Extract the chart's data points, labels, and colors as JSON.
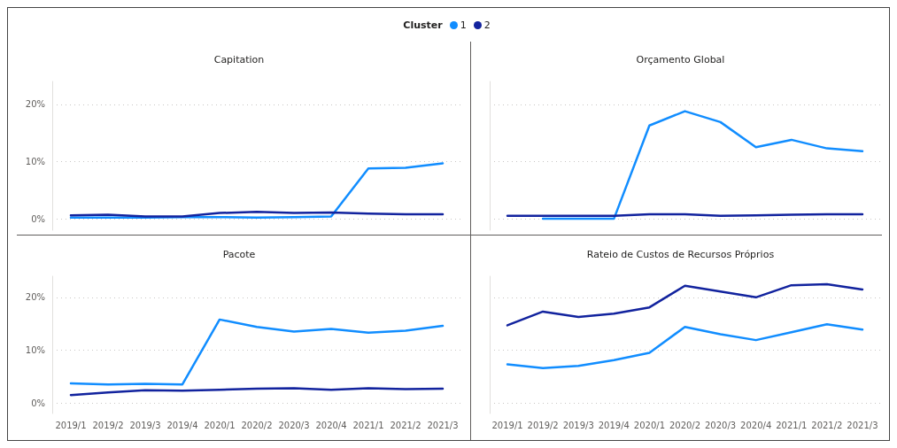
{
  "chart_data": [
    {
      "type": "line",
      "title": "Capitation",
      "legend_title": "Cluster",
      "legend": "top",
      "categories": [
        "2019/1",
        "2019/2",
        "2019/3",
        "2019/4",
        "2020/1",
        "2020/2",
        "2020/3",
        "2020/4",
        "2021/1",
        "2021/2",
        "2021/3"
      ],
      "series": [
        {
          "name": "1",
          "color": "#118dff",
          "values": [
            0.2,
            0.2,
            0.2,
            0.3,
            0.3,
            0.2,
            0.3,
            0.4,
            8.8,
            8.9,
            9.7
          ]
        },
        {
          "name": "2",
          "color": "#12239e",
          "values": [
            0.6,
            0.7,
            0.4,
            0.4,
            1.0,
            1.2,
            1.0,
            1.1,
            0.9,
            0.8,
            0.8
          ]
        }
      ],
      "ylim": [
        -2,
        24
      ],
      "yticks": [
        {
          "value": 0,
          "label": "0%"
        },
        {
          "value": 10,
          "label": "10%"
        },
        {
          "value": 20,
          "label": "20%"
        }
      ],
      "grid": "y",
      "tick_labels": "y",
      "marker": "none"
    },
    {
      "type": "line",
      "title": "Orçamento Global",
      "categories": [
        "2019/1",
        "2019/2",
        "2019/3",
        "2019/4",
        "2020/1",
        "2020/2",
        "2020/3",
        "2020/4",
        "2021/1",
        "2021/2",
        "2021/3"
      ],
      "series": [
        {
          "name": "1",
          "color": "#118dff",
          "values": [
            null,
            0.0,
            0.0,
            0.0,
            16.3,
            18.8,
            16.9,
            12.5,
            13.8,
            12.3,
            11.8
          ]
        },
        {
          "name": "2",
          "color": "#12239e",
          "values": [
            0.5,
            0.5,
            0.5,
            0.5,
            0.8,
            0.8,
            0.5,
            0.6,
            0.7,
            0.8,
            0.8
          ]
        }
      ],
      "ylim": [
        -2,
        24
      ],
      "yticks": [
        0,
        10,
        20
      ],
      "grid": "y",
      "tick_labels": false,
      "marker": "none"
    },
    {
      "type": "line",
      "title": "Pacote",
      "categories": [
        "2019/1",
        "2019/2",
        "2019/3",
        "2019/4",
        "2020/1",
        "2020/2",
        "2020/3",
        "2020/4",
        "2021/1",
        "2021/2",
        "2021/3"
      ],
      "series": [
        {
          "name": "1",
          "color": "#118dff",
          "values": [
            3.7,
            3.5,
            3.6,
            3.5,
            15.8,
            14.4,
            13.5,
            14.0,
            13.3,
            13.7,
            14.6
          ]
        },
        {
          "name": "2",
          "color": "#12239e",
          "values": [
            1.5,
            2.0,
            2.4,
            2.3,
            2.5,
            2.7,
            2.8,
            2.5,
            2.8,
            2.6,
            2.7
          ]
        }
      ],
      "ylim": [
        -2,
        24
      ],
      "yticks": [
        {
          "value": 0,
          "label": "0%"
        },
        {
          "value": 10,
          "label": "10%"
        },
        {
          "value": 20,
          "label": "20%"
        }
      ],
      "grid": "y",
      "marker": "none"
    },
    {
      "type": "line",
      "title": "Rateio de Custos de Recursos Próprios",
      "categories": [
        "2019/1",
        "2019/2",
        "2019/3",
        "2019/4",
        "2020/1",
        "2020/2",
        "2020/3",
        "2020/4",
        "2021/1",
        "2021/2",
        "2021/3"
      ],
      "series": [
        {
          "name": "1",
          "color": "#118dff",
          "values": [
            7.3,
            6.6,
            7.0,
            8.1,
            9.5,
            14.4,
            13.0,
            11.9,
            13.4,
            14.9,
            13.9
          ]
        },
        {
          "name": "2",
          "color": "#12239e",
          "values": [
            14.7,
            17.3,
            16.3,
            16.9,
            18.1,
            22.2,
            21.1,
            20.0,
            22.3,
            22.5,
            21.5
          ]
        }
      ],
      "ylim": [
        -2,
        24
      ],
      "yticks": [
        0,
        10,
        20
      ],
      "grid": "y",
      "tick_labels": "x",
      "marker": "none"
    }
  ]
}
